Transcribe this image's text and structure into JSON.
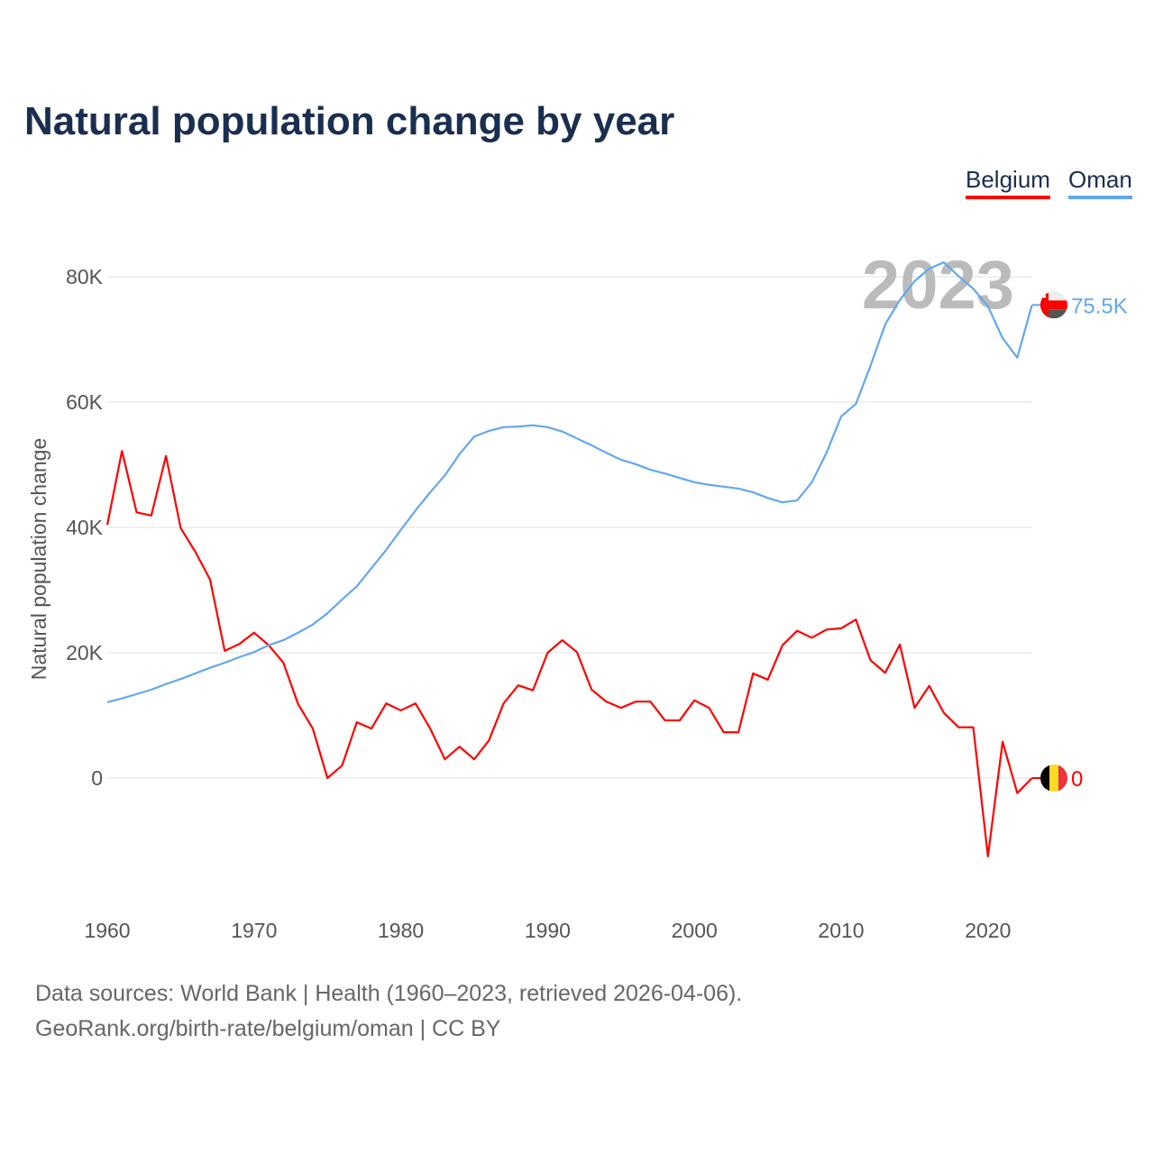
{
  "chart_data": {
    "type": "line",
    "title": "Natural population change by year",
    "xlabel": "",
    "ylabel": "Natural population change",
    "xlim": [
      1960,
      2023
    ],
    "ylim": [
      -20000,
      90000
    ],
    "x_ticks": [
      "1960",
      "1970",
      "1980",
      "1990",
      "2000",
      "2010",
      "2020"
    ],
    "y_ticks": [
      {
        "v": 0,
        "label": "0"
      },
      {
        "v": 20000,
        "label": "20K"
      },
      {
        "v": 40000,
        "label": "40K"
      },
      {
        "v": 60000,
        "label": "60K"
      },
      {
        "v": 80000,
        "label": "80K"
      }
    ],
    "grid": true,
    "legend_placement": "top-right",
    "year_watermark": "2023",
    "x": [
      1960,
      1961,
      1962,
      1963,
      1964,
      1965,
      1966,
      1967,
      1968,
      1969,
      1970,
      1971,
      1972,
      1973,
      1974,
      1975,
      1976,
      1977,
      1978,
      1979,
      1980,
      1981,
      1982,
      1983,
      1984,
      1985,
      1986,
      1987,
      1988,
      1989,
      1990,
      1991,
      1992,
      1993,
      1994,
      1995,
      1996,
      1997,
      1998,
      1999,
      2000,
      2001,
      2002,
      2003,
      2004,
      2005,
      2006,
      2007,
      2008,
      2009,
      2010,
      2011,
      2012,
      2013,
      2014,
      2015,
      2016,
      2017,
      2018,
      2019,
      2020,
      2021,
      2022,
      2023
    ],
    "series": [
      {
        "name": "Belgium",
        "color": "#ff0000",
        "end_label": "0",
        "values": [
          40400,
          52200,
          42400,
          41900,
          51400,
          39900,
          36100,
          31700,
          20300,
          21400,
          23200,
          21200,
          18400,
          11800,
          7900,
          0,
          2000,
          8900,
          7900,
          11900,
          10800,
          11900,
          7900,
          3000,
          5000,
          3000,
          6000,
          11900,
          14800,
          14000,
          20000,
          22000,
          20100,
          14100,
          12200,
          11200,
          12200,
          12200,
          9200,
          9200,
          12400,
          11200,
          7300,
          7300,
          16700,
          15700,
          21200,
          23500,
          22400,
          23700,
          23900,
          25300,
          18800,
          16800,
          21300,
          11200,
          14700,
          10400,
          8100,
          8100,
          -12500,
          5800,
          -2400,
          0
        ]
      },
      {
        "name": "Oman",
        "color": "#62a8ee",
        "end_label": "75.5K",
        "values": [
          12100,
          12700,
          13400,
          14100,
          15000,
          15800,
          16700,
          17600,
          18400,
          19300,
          20100,
          21200,
          22000,
          23200,
          24500,
          26300,
          28500,
          30600,
          33500,
          36400,
          39600,
          42700,
          45600,
          48300,
          51700,
          54500,
          55400,
          56000,
          56100,
          56300,
          56000,
          55300,
          54200,
          53100,
          51900,
          50800,
          50100,
          49200,
          48600,
          47900,
          47200,
          46800,
          46500,
          46200,
          45600,
          44700,
          44000,
          44300,
          47200,
          51900,
          57700,
          59700,
          65800,
          72400,
          76300,
          79300,
          81300,
          82300,
          80100,
          78100,
          75300,
          70200,
          67100,
          75500
        ]
      }
    ]
  },
  "footer": {
    "line1": "Data sources: World Bank | Health (1960–2023, retrieved 2026-04-06).",
    "line2": "GeoRank.org/birth-rate/belgium/oman | CC BY"
  }
}
